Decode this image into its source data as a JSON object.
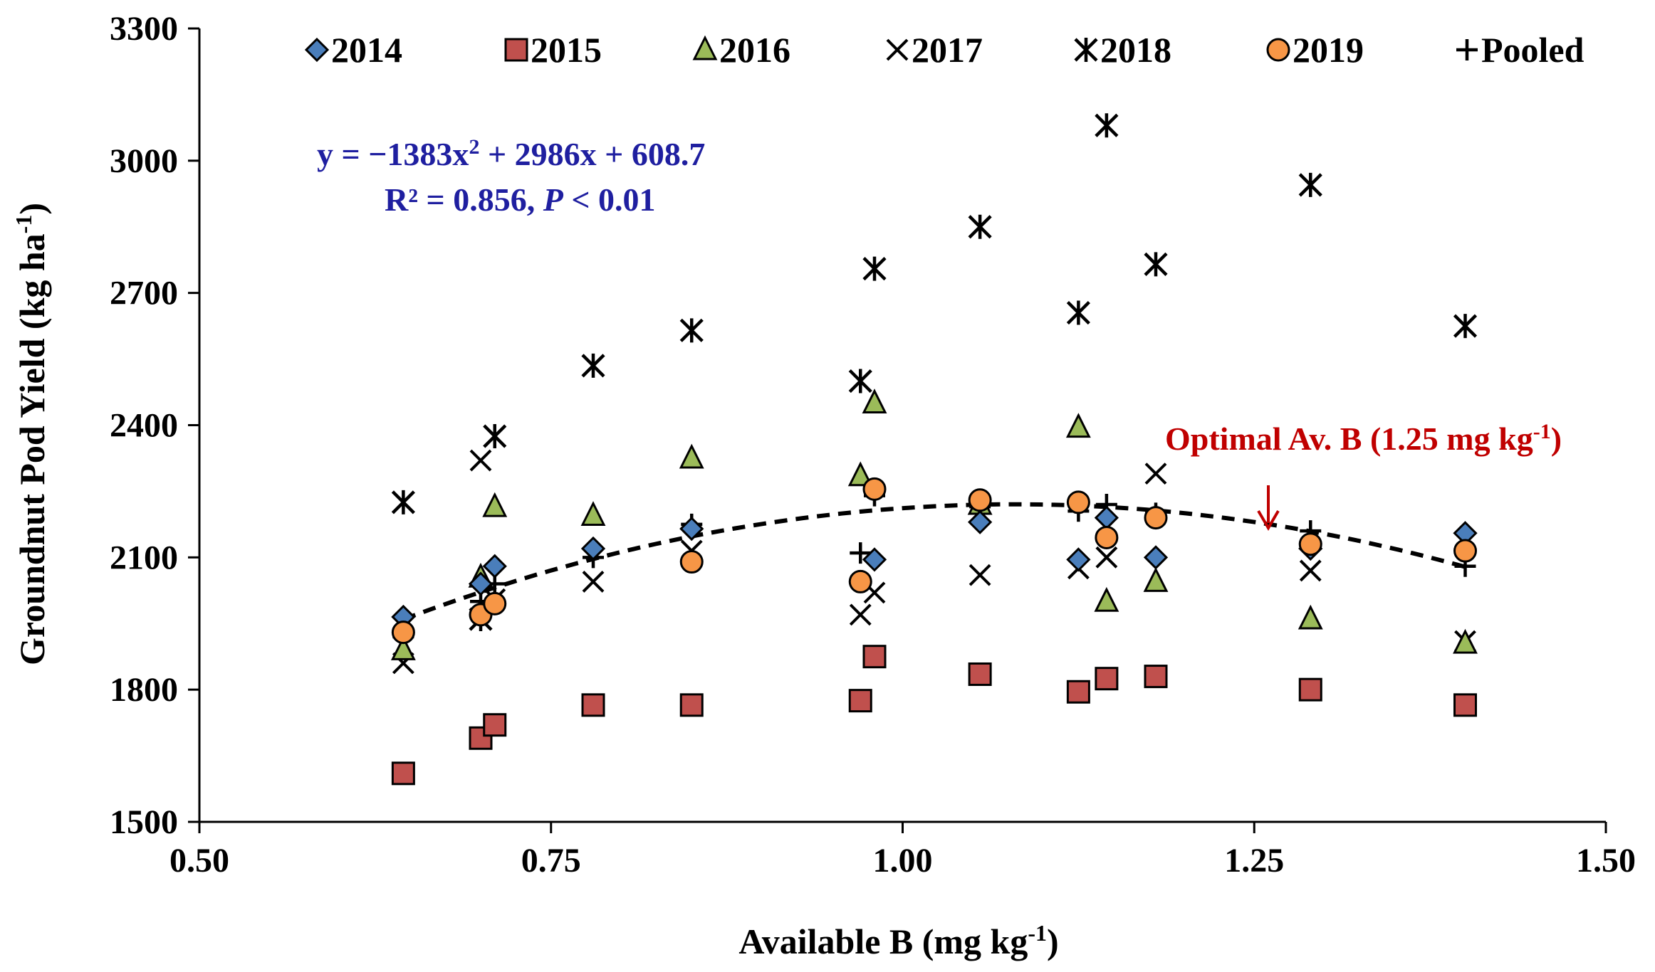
{
  "chart_data": {
    "type": "scatter",
    "title": "",
    "xlabel": {
      "main": "Available B (mg kg",
      "sup": "-1",
      "end": ")"
    },
    "ylabel": {
      "main": "Groundnut Pod Yield (kg ha",
      "sup": "-1",
      "end": ")"
    },
    "xlim": [
      0.5,
      1.5
    ],
    "ylim": [
      1500,
      3300
    ],
    "xticks": [
      0.5,
      0.75,
      1.0,
      1.25,
      1.5
    ],
    "xtick_labels": [
      "0.50",
      "0.75",
      "1.00",
      "1.25",
      "1.50"
    ],
    "yticks": [
      1500,
      1800,
      2100,
      2400,
      2700,
      3000,
      3300
    ],
    "ytick_labels": [
      "1500",
      "1800",
      "2100",
      "2400",
      "2700",
      "3000",
      "3300"
    ],
    "grid": false,
    "legend_position": "top",
    "series": [
      {
        "name": "2014",
        "marker": "diamond",
        "color": "#4a7ebb",
        "x": [
          0.645,
          0.7,
          0.71,
          0.78,
          0.85,
          0.98,
          1.055,
          1.125,
          1.145,
          1.18,
          1.29,
          1.4
        ],
        "y": [
          1965,
          2040,
          2080,
          2120,
          2165,
          2095,
          2180,
          2095,
          2190,
          2100,
          2120,
          2155
        ]
      },
      {
        "name": "2015",
        "marker": "square",
        "color": "#c0504d",
        "x": [
          0.645,
          0.7,
          0.71,
          0.78,
          0.85,
          0.97,
          0.98,
          1.055,
          1.125,
          1.145,
          1.18,
          1.29,
          1.4
        ],
        "y": [
          1610,
          1690,
          1720,
          1765,
          1765,
          1775,
          1875,
          1835,
          1795,
          1825,
          1830,
          1800,
          1765
        ]
      },
      {
        "name": "2016",
        "marker": "triangle",
        "color": "#9bbb59",
        "x": [
          0.645,
          0.7,
          0.71,
          0.78,
          0.85,
          0.97,
          0.98,
          1.055,
          1.125,
          1.145,
          1.18,
          1.29,
          1.4
        ],
        "y": [
          1890,
          2055,
          2215,
          2195,
          2325,
          2285,
          2450,
          2220,
          2395,
          2000,
          2045,
          1960,
          1905
        ]
      },
      {
        "name": "2017",
        "marker": "x",
        "color": "#000000",
        "x": [
          0.645,
          0.7,
          0.71,
          0.78,
          0.85,
          0.97,
          0.98,
          1.055,
          1.125,
          1.145,
          1.18,
          1.29,
          1.4
        ],
        "y": [
          1860,
          2320,
          2005,
          2045,
          2115,
          1970,
          2020,
          2060,
          2075,
          2100,
          2290,
          2070,
          1910
        ]
      },
      {
        "name": "2018",
        "marker": "asterisk",
        "color": "#000000",
        "x": [
          0.645,
          0.7,
          0.71,
          0.78,
          0.85,
          0.97,
          0.98,
          1.055,
          1.125,
          1.145,
          1.18,
          1.29,
          1.4
        ],
        "y": [
          2225,
          1960,
          2375,
          2535,
          2615,
          2500,
          2755,
          2850,
          2655,
          3080,
          2765,
          2945,
          2625
        ]
      },
      {
        "name": "2019",
        "marker": "circle",
        "color": "#f79646",
        "x": [
          0.645,
          0.7,
          0.71,
          0.85,
          0.97,
          0.98,
          1.055,
          1.125,
          1.145,
          1.18,
          1.29,
          1.4
        ],
        "y": [
          1930,
          1970,
          1995,
          2090,
          2045,
          2255,
          2230,
          2225,
          2145,
          2190,
          2130,
          2115
        ]
      },
      {
        "name": "Pooled",
        "marker": "plus",
        "color": "#000000",
        "x": [
          0.645,
          0.7,
          0.71,
          0.78,
          0.85,
          0.97,
          0.98,
          1.055,
          1.125,
          1.145,
          1.18,
          1.29,
          1.4
        ],
        "y": [
          1920,
          2000,
          2040,
          2100,
          2175,
          2110,
          2240,
          2215,
          2205,
          2220,
          2200,
          2160,
          2080
        ]
      }
    ],
    "trendline": {
      "type": "polynomial",
      "coefficients": [
        -1383,
        2986,
        608.7
      ],
      "x_range": [
        0.645,
        1.4
      ],
      "style": "dashed",
      "color": "#000000"
    },
    "annotations": {
      "equation": {
        "line1": {
          "a": "y = −1383x",
          "sup": "2",
          "b": " + 2986x + 608.7"
        },
        "line2": {
          "a": "R² = 0.856, ",
          "italic": "P",
          "b": " < 0.01"
        },
        "color": "#1f1fa0"
      },
      "optimal": {
        "a": "Optimal  Av. B (1.25 mg kg",
        "sup": "-1",
        "b": ")",
        "x": 1.26,
        "color": "#c00000"
      }
    }
  }
}
